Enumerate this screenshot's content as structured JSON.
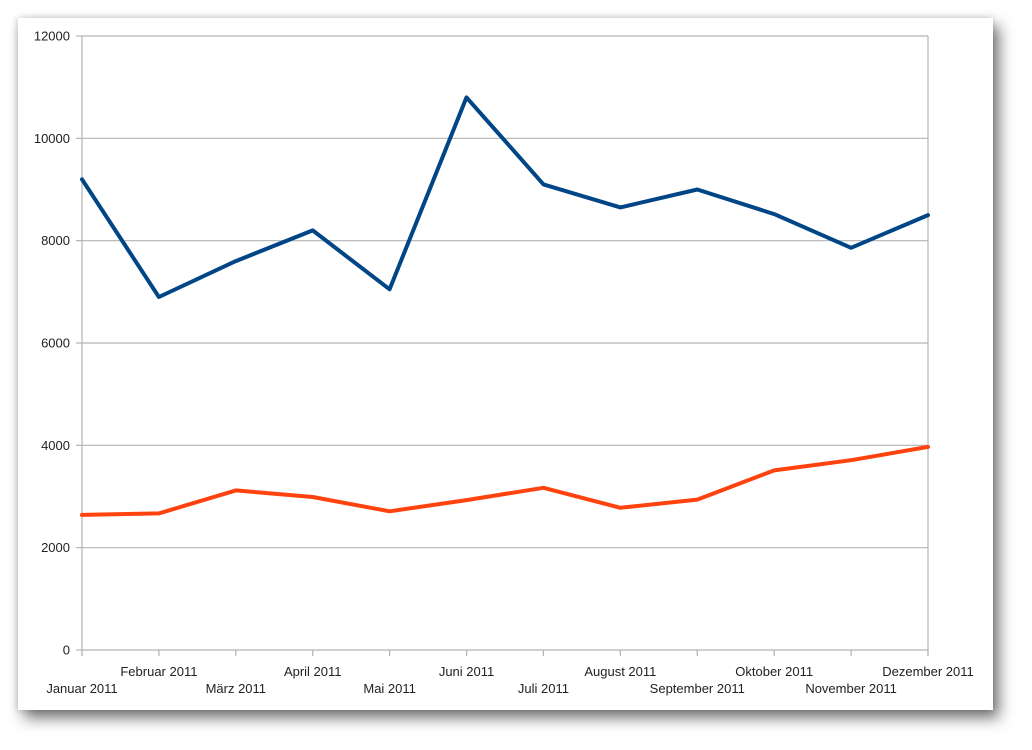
{
  "colors": {
    "series_1": "#004586",
    "series_2": "#ff420e",
    "grid": "#b3b3b3",
    "axis": "#b3b3b3",
    "label": "#222222"
  },
  "chart_data": {
    "type": "line",
    "title": "",
    "xlabel": "",
    "ylabel": "",
    "categories": [
      "Januar 2011",
      "Februar 2011",
      "März 2011",
      "April 2011",
      "Mai 2011",
      "Juni 2011",
      "Juli 2011",
      "August 2011",
      "September 2011",
      "Oktober 2011",
      "November 2011",
      "Dezember 2011"
    ],
    "ylim": [
      0,
      12000
    ],
    "yticks": [
      "0",
      "2000",
      "4000",
      "6000",
      "8000",
      "10000",
      "12000"
    ],
    "grid": true,
    "legend": "none",
    "series": [
      {
        "values": [
          9200,
          6900,
          7600,
          8200,
          7050,
          10800,
          9100,
          8650,
          9000,
          8520,
          7860,
          8500
        ]
      },
      {
        "values": [
          2640,
          2670,
          3120,
          2990,
          2710,
          2930,
          3170,
          2780,
          2940,
          3510,
          3710,
          3970
        ]
      }
    ]
  }
}
